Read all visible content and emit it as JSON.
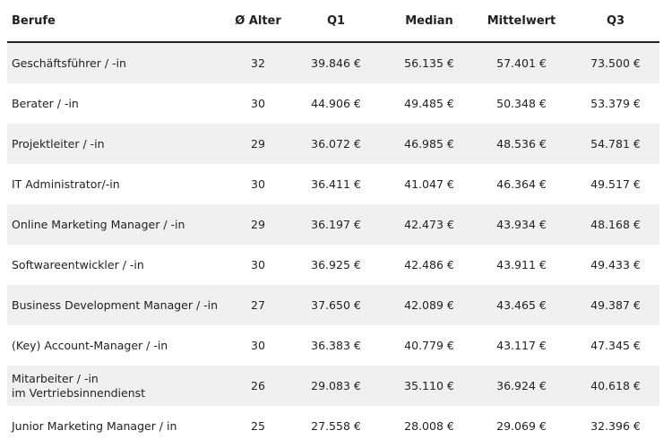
{
  "table": {
    "columns": [
      "Berufe",
      "Ø Alter",
      "Q1",
      "Median",
      "Mittelwert",
      "Q3"
    ],
    "rows": [
      [
        "Geschäftsführer / -in",
        32,
        "39.846 €",
        "56.135 €",
        "57.401 €",
        "73.500 €"
      ],
      [
        "Berater / -in",
        30,
        "44.906 €",
        "49.485 €",
        "50.348 €",
        "53.379 €"
      ],
      [
        "Projektleiter / -in",
        29,
        "36.072 €",
        "46.985 €",
        "48.536 €",
        "54.781 €"
      ],
      [
        "IT Administrator/-in",
        30,
        "36.411 €",
        "41.047 €",
        "46.364 €",
        "49.517 €"
      ],
      [
        "Online Marketing Manager / -in",
        29,
        "36.197 €",
        "42.473 €",
        "43.934 €",
        "48.168 €"
      ],
      [
        "Softwareentwickler / -in",
        30,
        "36.925 €",
        "42.486 €",
        "43.911 €",
        "49.433 €"
      ],
      [
        "Business Development Manager / -in",
        27,
        "37.650 €",
        "42.089 €",
        "43.465 €",
        "49.387 €"
      ],
      [
        "(Key) Account-Manager / -in",
        30,
        "36.383 €",
        "40.779 €",
        "43.117 €",
        "47.345 €"
      ],
      [
        "Mitarbeiter / -in\nim Vertriebsinnendienst",
        26,
        "29.083 €",
        "35.110 €",
        "36.924 €",
        "40.618 €"
      ],
      [
        "Junior Marketing Manager / in",
        25,
        "27.558 €",
        "28.008 €",
        "29.069 €",
        "32.396 €"
      ]
    ]
  }
}
